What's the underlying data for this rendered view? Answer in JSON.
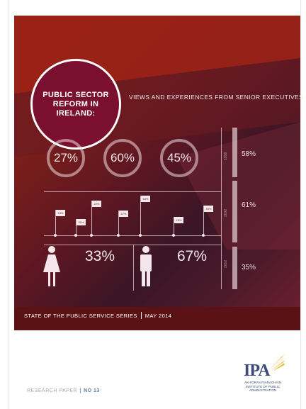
{
  "cover": {
    "title_line1": "PUBLIC SECTOR",
    "title_line2": "REFORM IN IRELAND:",
    "subtitle": "VIEWS AND EXPERIENCES FROM SENIOR EXECUTIVES",
    "rings": [
      "27%",
      "60%",
      "45%"
    ],
    "right_stats": [
      {
        "year": "1998",
        "value": "58%"
      },
      {
        "year": "2002",
        "value": "61%"
      },
      {
        "year": "2012",
        "value": "35%"
      }
    ],
    "flags": [
      "24%",
      "31%",
      "22%",
      "57%",
      "84%",
      "29%",
      "45%"
    ],
    "female_pct": "33%",
    "male_pct": "67%",
    "series": "STATE OF THE PUBLIC SERVICE SERIES",
    "date": "MAY 2014"
  },
  "footer": {
    "research_label": "RESEARCH PAPER",
    "paper_no": "NO 13",
    "logo": {
      "mark": "IPA",
      "line1": "AN FORAS RIARACHÁIN",
      "line2": "INSTITUTE OF PUBLIC",
      "line3": "ADMINISTRATION"
    }
  },
  "colors": {
    "band_top": "#a02516",
    "band_mid": "#5e1722",
    "title_circle": "#7a0f2f",
    "logo_blue": "#3e4a77",
    "logo_gold": "#e0b21b"
  }
}
